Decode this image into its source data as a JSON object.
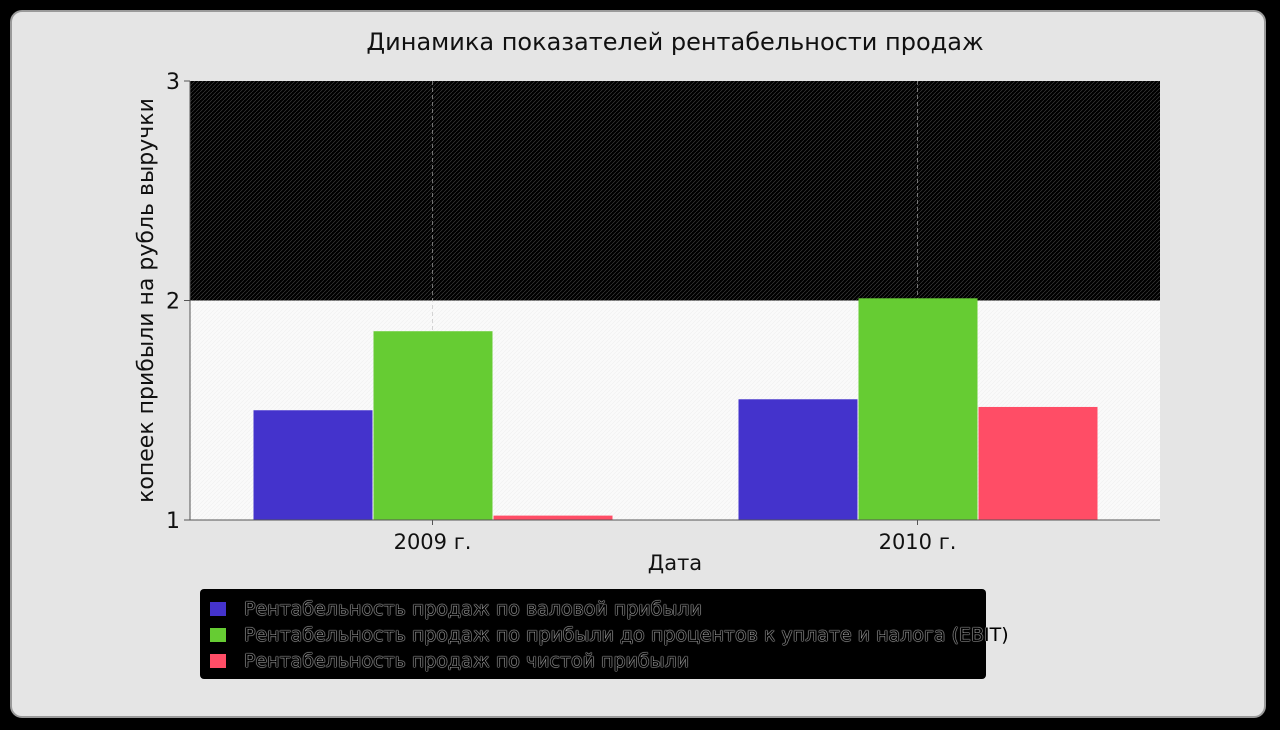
{
  "chart_data": {
    "type": "bar",
    "title": "Динамика показателей рентабельности продаж",
    "xlabel": "Дата",
    "ylabel": "копеек прибыли на рубль выручки",
    "categories": [
      "2009 г.",
      "2010 г."
    ],
    "ylim": [
      1,
      3
    ],
    "yticks": [
      1,
      2,
      3
    ],
    "grid": true,
    "legend_position": "bottom",
    "series": [
      {
        "name": "Рентабельность продаж по валовой прибыли",
        "color": "#4433cc",
        "values": [
          1.5,
          1.55
        ]
      },
      {
        "name": "Рентабельность продаж по прибыли до процентов к уплате и налога (EBIT)",
        "color": "#66cc33",
        "values": [
          1.86,
          2.01
        ]
      },
      {
        "name": "Рентабельность продаж по чистой прибыли",
        "color": "#ff4d66",
        "values": [
          1.02,
          1.515
        ]
      }
    ]
  }
}
